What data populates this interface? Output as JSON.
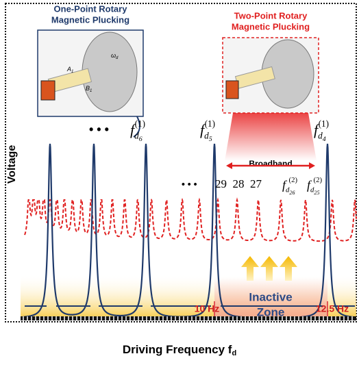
{
  "left_inset": {
    "title_line1": "One-Point Rotary",
    "title_line2": "Magnetic Plucking",
    "labels": [
      "A",
      "1",
      "B",
      "1",
      "ω",
      "d"
    ]
  },
  "right_inset": {
    "title_line1": "Two-Point Rotary",
    "title_line2": "Magnetic Plucking"
  },
  "y_axis_label": "Voltage",
  "x_axis_label": {
    "text": "Driving Frequency f",
    "sub": "d"
  },
  "ellipsis": "• • •",
  "one_point_labels": [
    {
      "f": "f",
      "sub": "d",
      "index": "6",
      "sup": "(1)"
    },
    {
      "f": "f",
      "sub": "d",
      "index": "5",
      "sup": "(1)"
    },
    {
      "f": "f",
      "sub": "d",
      "index": "4",
      "sup": "(1)"
    }
  ],
  "two_point_numbers": "29  28  27",
  "two_point_labels": [
    {
      "f": "f",
      "sub": "d",
      "index": "26",
      "sup": "(2)"
    },
    {
      "f": "f",
      "sub": "d",
      "index": "25",
      "sup": "(2)"
    }
  ],
  "broadband": "Broadband",
  "inactive_zone": {
    "line1": "Inactive",
    "line2": "Zone"
  },
  "freq_labels": [
    "10 Hz",
    "12.5 Hz"
  ]
}
